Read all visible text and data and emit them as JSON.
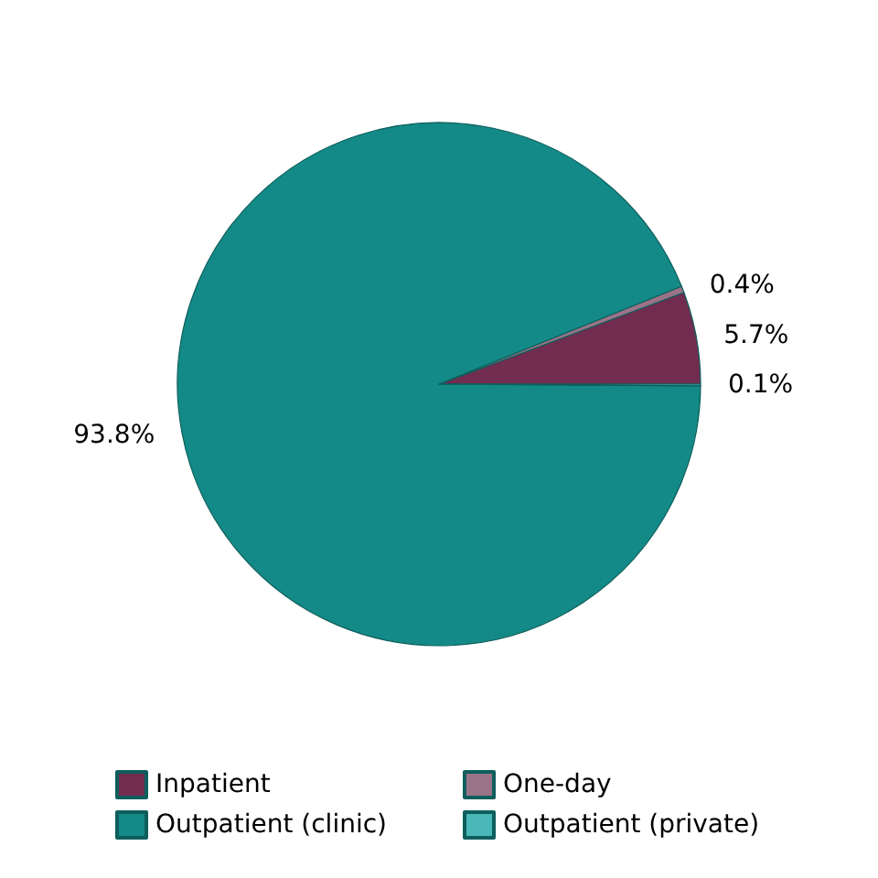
{
  "chart_data": {
    "type": "pie",
    "categories": [
      "Inpatient",
      "One-day",
      "Outpatient (clinic)",
      "Outpatient (private)"
    ],
    "values": [
      5.7,
      0.4,
      93.8,
      0.1
    ],
    "value_labels": [
      "5.7%",
      "0.4%",
      "93.8%",
      "0.1%"
    ],
    "colors": [
      "#722c50",
      "#9b7388",
      "#138a87",
      "#4ab8b8"
    ],
    "legend": "bottom"
  }
}
